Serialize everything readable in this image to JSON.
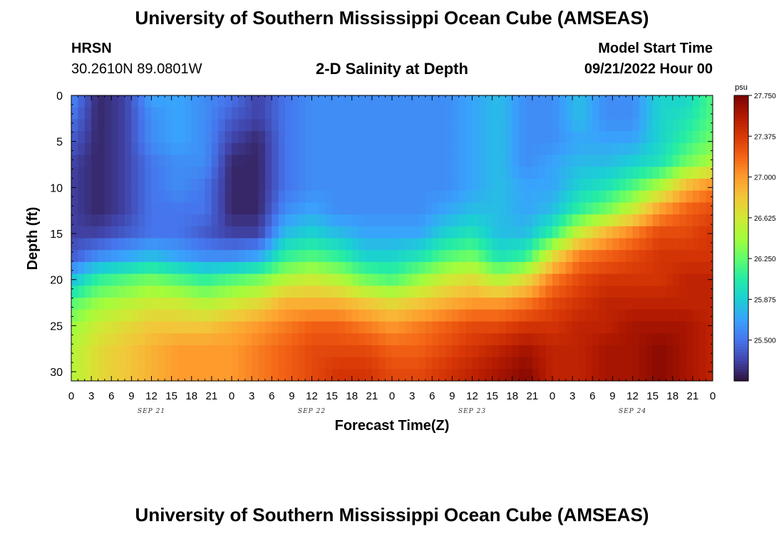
{
  "header": {
    "title": "University of Southern Mississippi Ocean Cube (AMSEAS)",
    "station": "HRSN",
    "coords": "30.2610N  89.0801W",
    "subtitle": "2-D Salinity at Depth",
    "model_start_label": "Model Start Time",
    "model_start_value": "09/21/2022 Hour 00"
  },
  "footer": {
    "title": "University of Southern Mississippi Ocean Cube (AMSEAS)"
  },
  "colors": {
    "scale": [
      "#30123b",
      "#4145ab",
      "#4675ed",
      "#39a2fc",
      "#1bcfd4",
      "#24eca6",
      "#61fc6c",
      "#a4fc3b",
      "#d1e834",
      "#f3c63a",
      "#fe9b2d",
      "#f36315",
      "#d93806",
      "#b11901",
      "#7a0402"
    ]
  },
  "chart_data": {
    "type": "heatmap",
    "xlabel": "Forecast Time(Z)",
    "ylabel": "Depth (ft)",
    "ylim": [
      0,
      31
    ],
    "y_ticks": [
      0,
      5,
      10,
      15,
      20,
      25,
      30
    ],
    "y_tick_labels": [
      "0",
      "5",
      "10",
      "15",
      "20",
      "25",
      "30"
    ],
    "x_range_hours": [
      0,
      96
    ],
    "x_ticks": [
      0,
      3,
      6,
      9,
      12,
      15,
      18,
      21,
      24,
      27,
      30,
      33,
      36,
      39,
      42,
      45,
      48,
      51,
      54,
      57,
      60,
      63,
      66,
      69,
      72,
      75,
      78,
      81,
      84,
      87,
      90,
      93,
      96
    ],
    "x_tick_labels": [
      "0",
      "3",
      "6",
      "9",
      "12",
      "15",
      "18",
      "21",
      "0",
      "3",
      "6",
      "9",
      "12",
      "15",
      "18",
      "21",
      "0",
      "3",
      "6",
      "9",
      "12",
      "15",
      "18",
      "21",
      "0",
      "3",
      "6",
      "9",
      "12",
      "15",
      "18",
      "21",
      "0"
    ],
    "day_labels": [
      {
        "hour": 12,
        "label": "SEP 21"
      },
      {
        "hour": 36,
        "label": "SEP 22"
      },
      {
        "hour": 60,
        "label": "SEP 23"
      },
      {
        "hour": 84,
        "label": "SEP 24"
      }
    ],
    "colorbar": {
      "unit": "psu",
      "min": 25.125,
      "max": 27.75,
      "ticks": [
        27.75,
        27.375,
        27.0,
        26.625,
        26.25,
        25.875,
        25.5
      ],
      "tick_labels": [
        "27.750",
        "27.375",
        "27.000",
        "26.625",
        "26.250",
        "25.875",
        "25.500"
      ]
    },
    "depth_samples": [
      0,
      2.5,
      5,
      7.5,
      10,
      12.5,
      15,
      17.5,
      20,
      22.5,
      25,
      27.5,
      30,
      31
    ],
    "time_samples": [
      0,
      4,
      8,
      12,
      16,
      20,
      24,
      28,
      32,
      36,
      40,
      44,
      48,
      52,
      56,
      60,
      64,
      68,
      72,
      76,
      80,
      84,
      88,
      92,
      96
    ],
    "salinity": [
      [
        25.6,
        25.2,
        25.3,
        25.7,
        25.7,
        25.6,
        25.5,
        25.3,
        25.5,
        25.6,
        25.6,
        25.6,
        25.6,
        25.6,
        25.6,
        25.7,
        25.8,
        25.6,
        25.6,
        25.8,
        25.6,
        25.6,
        25.9,
        25.9,
        26.2
      ],
      [
        25.5,
        25.2,
        25.3,
        25.6,
        25.7,
        25.6,
        25.4,
        25.3,
        25.5,
        25.6,
        25.6,
        25.6,
        25.6,
        25.6,
        25.6,
        25.7,
        25.8,
        25.6,
        25.6,
        25.8,
        25.6,
        25.6,
        25.9,
        26.0,
        26.2
      ],
      [
        25.4,
        25.2,
        25.3,
        25.6,
        25.7,
        25.6,
        25.3,
        25.2,
        25.5,
        25.6,
        25.6,
        25.6,
        25.6,
        25.6,
        25.6,
        25.7,
        25.8,
        25.6,
        25.6,
        25.7,
        25.7,
        25.7,
        25.9,
        26.1,
        26.3
      ],
      [
        25.3,
        25.2,
        25.3,
        25.5,
        25.6,
        25.6,
        25.2,
        25.2,
        25.5,
        25.6,
        25.6,
        25.6,
        25.6,
        25.6,
        25.6,
        25.7,
        25.8,
        25.6,
        25.7,
        25.8,
        25.8,
        25.9,
        26.0,
        26.3,
        26.5
      ],
      [
        25.3,
        25.2,
        25.3,
        25.5,
        25.6,
        25.5,
        25.2,
        25.2,
        25.5,
        25.6,
        25.6,
        25.6,
        25.6,
        25.6,
        25.6,
        25.7,
        25.8,
        25.7,
        25.7,
        25.9,
        26.0,
        26.2,
        26.5,
        26.9,
        27.1
      ],
      [
        25.3,
        25.2,
        25.3,
        25.5,
        25.5,
        25.5,
        25.2,
        25.2,
        25.6,
        25.7,
        25.6,
        25.6,
        25.6,
        25.6,
        25.7,
        25.8,
        25.8,
        25.7,
        25.8,
        26.1,
        26.3,
        26.6,
        27.0,
        27.2,
        27.3
      ],
      [
        25.3,
        25.3,
        25.4,
        25.5,
        25.5,
        25.4,
        25.3,
        25.3,
        25.8,
        25.9,
        25.8,
        25.7,
        25.7,
        25.7,
        25.9,
        26.0,
        25.8,
        25.8,
        26.1,
        26.6,
        26.9,
        27.1,
        27.3,
        27.3,
        27.4
      ],
      [
        25.4,
        25.6,
        25.7,
        25.8,
        25.7,
        25.6,
        25.6,
        25.7,
        26.1,
        26.2,
        26.1,
        25.9,
        25.9,
        26.0,
        26.2,
        26.3,
        26.0,
        26.1,
        26.7,
        27.1,
        27.2,
        27.3,
        27.4,
        27.4,
        27.4
      ],
      [
        25.8,
        26.1,
        26.2,
        26.3,
        26.2,
        26.1,
        26.2,
        26.3,
        26.5,
        26.6,
        26.5,
        26.3,
        26.2,
        26.4,
        26.6,
        26.7,
        26.5,
        26.7,
        27.1,
        27.3,
        27.4,
        27.4,
        27.4,
        27.5,
        27.5
      ],
      [
        26.2,
        26.4,
        26.5,
        26.6,
        26.6,
        26.5,
        26.6,
        26.7,
        26.9,
        26.9,
        26.9,
        26.8,
        26.7,
        26.8,
        26.9,
        27.0,
        27.0,
        27.1,
        27.3,
        27.4,
        27.5,
        27.5,
        27.5,
        27.5,
        27.5
      ],
      [
        26.4,
        26.6,
        26.7,
        26.8,
        26.8,
        26.8,
        26.9,
        27.0,
        27.1,
        27.2,
        27.2,
        27.1,
        27.0,
        27.1,
        27.2,
        27.3,
        27.3,
        27.4,
        27.4,
        27.5,
        27.5,
        27.6,
        27.6,
        27.6,
        27.5
      ],
      [
        26.5,
        26.7,
        26.8,
        26.9,
        27.0,
        27.0,
        27.0,
        27.1,
        27.2,
        27.3,
        27.3,
        27.3,
        27.2,
        27.2,
        27.3,
        27.4,
        27.5,
        27.6,
        27.5,
        27.5,
        27.6,
        27.6,
        27.7,
        27.6,
        27.5
      ],
      [
        26.5,
        26.7,
        26.8,
        26.9,
        27.0,
        27.0,
        27.0,
        27.1,
        27.2,
        27.3,
        27.4,
        27.4,
        27.3,
        27.3,
        27.4,
        27.5,
        27.6,
        27.7,
        27.5,
        27.5,
        27.6,
        27.6,
        27.7,
        27.6,
        27.5
      ],
      [
        26.5,
        26.7,
        26.8,
        26.9,
        27.0,
        27.0,
        27.0,
        27.1,
        27.2,
        27.3,
        27.4,
        27.4,
        27.3,
        27.3,
        27.4,
        27.5,
        27.6,
        27.7,
        27.5,
        27.5,
        27.6,
        27.6,
        27.7,
        27.6,
        27.5
      ]
    ]
  }
}
